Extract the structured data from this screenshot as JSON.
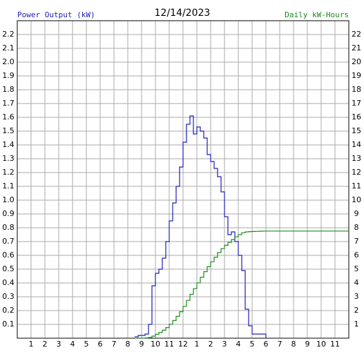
{
  "chart_data": {
    "type": "line",
    "step": true,
    "title": "12/14/2023",
    "ylabel": "Power Output (kW)",
    "y2label": "Daily kW-Hours",
    "ylabel_color": "#1c1cb8",
    "y2label_color": "#1a8a1a",
    "grid": true,
    "grid_color": "#aaaaaa",
    "xlim": [
      0,
      24
    ],
    "xticks": [
      1,
      2,
      3,
      4,
      5,
      6,
      7,
      8,
      9,
      10,
      11,
      12,
      {
        "value": 13,
        "label": "1"
      },
      {
        "value": 14,
        "label": "2"
      },
      {
        "value": 15,
        "label": "3"
      },
      {
        "value": 16,
        "label": "4"
      },
      {
        "value": 17,
        "label": "5"
      },
      {
        "value": 18,
        "label": "6"
      },
      {
        "value": 19,
        "label": "7"
      },
      {
        "value": 20,
        "label": "8"
      },
      {
        "value": 21,
        "label": "9"
      },
      {
        "value": 22,
        "label": "10"
      },
      {
        "value": 23,
        "label": "11"
      }
    ],
    "ylim": [
      0,
      2.3
    ],
    "yticks": [
      0.1,
      0.2,
      0.3,
      0.4,
      0.5,
      0.6,
      0.7,
      0.8,
      0.9,
      {
        "value": 1,
        "label": "1.0"
      },
      1.1,
      1.2,
      1.3,
      1.4,
      1.5,
      1.6,
      1.7,
      1.8,
      1.9,
      {
        "value": 2,
        "label": "2.0"
      },
      2.1,
      2.2
    ],
    "y2lim": [
      0,
      23
    ],
    "y2ticks": [
      1,
      2,
      3,
      4,
      5,
      6,
      7,
      8,
      9,
      10,
      11,
      12,
      13,
      14,
      15,
      16,
      17,
      18,
      19,
      20,
      21,
      22
    ],
    "series": [
      {
        "color": "#1c1cb8",
        "x": [
          8.5,
          8.75,
          9,
          9.25,
          9.5,
          9.75,
          10,
          10.25,
          10.5,
          10.75,
          11,
          11.25,
          11.5,
          11.75,
          12,
          12.25,
          12.5,
          12.75,
          13,
          13.25,
          13.5,
          13.75,
          14,
          14.25,
          14.5,
          14.75,
          15,
          15.25,
          15.5,
          15.75,
          16,
          16.25,
          16.5,
          16.75,
          17,
          17.25,
          17.5,
          17.75,
          18
        ],
        "values": [
          0.01,
          0.02,
          0.02,
          0.03,
          0.1,
          0.38,
          0.47,
          0.5,
          0.58,
          0.7,
          0.85,
          0.98,
          1.1,
          1.24,
          1.42,
          1.55,
          1.61,
          1.48,
          1.53,
          1.5,
          1.45,
          1.33,
          1.28,
          1.23,
          1.17,
          1.06,
          0.88,
          0.75,
          0.77,
          0.7,
          0.6,
          0.49,
          0.21,
          0.09,
          0.03,
          0.03,
          0.03,
          0.03,
          0
        ]
      },
      {
        "color": "#1a8a1a",
        "axis": "y2",
        "x": [
          8.5,
          8.75,
          9,
          9.25,
          9.5,
          9.75,
          10,
          10.25,
          10.5,
          10.75,
          11,
          11.25,
          11.5,
          11.75,
          12,
          12.25,
          12.5,
          12.75,
          13,
          13.25,
          13.5,
          13.75,
          14,
          14.25,
          14.5,
          14.75,
          15,
          15.25,
          15.5,
          15.75,
          16,
          16.25,
          16.5,
          16.75,
          17,
          17.25,
          17.5,
          17.75,
          18,
          24
        ],
        "values": [
          0,
          0.01,
          0.01,
          0.02,
          0.05,
          0.15,
          0.28,
          0.42,
          0.58,
          0.77,
          1.01,
          1.28,
          1.58,
          1.92,
          2.31,
          2.74,
          3.18,
          3.59,
          4.01,
          4.42,
          4.82,
          5.18,
          5.54,
          5.87,
          6.2,
          6.49,
          6.73,
          6.94,
          7.15,
          7.34,
          7.5,
          7.64,
          7.7,
          7.72,
          7.73,
          7.74,
          7.75,
          7.76,
          7.76,
          7.76
        ]
      }
    ]
  }
}
